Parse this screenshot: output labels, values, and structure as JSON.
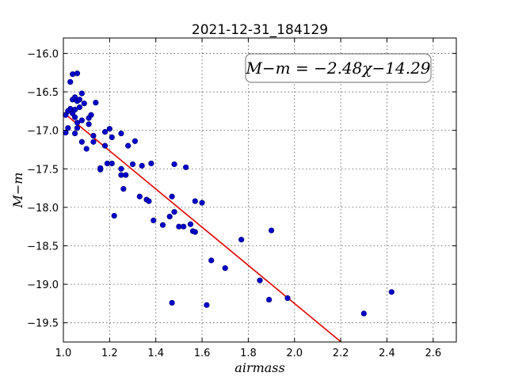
{
  "chart_data": {
    "type": "scatter",
    "title": "2021-12-31_184129",
    "xlabel": "airmass",
    "ylabel": "M−m",
    "xlim": [
      1.0,
      2.7
    ],
    "ylim": [
      -19.75,
      -15.8
    ],
    "x_ticks": [
      1.0,
      1.2,
      1.4,
      1.6,
      1.8,
      2.0,
      2.2,
      2.4,
      2.6
    ],
    "x_tick_labels": [
      "1.0",
      "1.2",
      "1.4",
      "1.6",
      "1.8",
      "2.0",
      "2.2",
      "2.4",
      "2.6"
    ],
    "y_ticks": [
      -16.0,
      -16.5,
      -17.0,
      -17.5,
      -18.0,
      -18.5,
      -19.0,
      -19.5
    ],
    "y_tick_labels": [
      "−16.0",
      "−16.5",
      "−17.0",
      "−17.5",
      "−18.0",
      "−18.5",
      "−19.0",
      "−19.5"
    ],
    "grid": true,
    "annotation": "M−m = −2.48χ−14.29",
    "annotation_position": "top-right",
    "marker_color": "#0000cc",
    "fit_color": "#dd0000",
    "fit": {
      "slope": -2.48,
      "intercept": -14.29,
      "x_range": [
        1.0,
        2.2
      ]
    },
    "points": [
      {
        "x": 1.01,
        "y": -16.8
      },
      {
        "x": 1.01,
        "y": -17.03
      },
      {
        "x": 1.02,
        "y": -16.97
      },
      {
        "x": 1.02,
        "y": -16.75
      },
      {
        "x": 1.03,
        "y": -16.72
      },
      {
        "x": 1.03,
        "y": -16.37
      },
      {
        "x": 1.04,
        "y": -16.27
      },
      {
        "x": 1.04,
        "y": -16.6
      },
      {
        "x": 1.04,
        "y": -16.78
      },
      {
        "x": 1.05,
        "y": -16.57
      },
      {
        "x": 1.05,
        "y": -16.83
      },
      {
        "x": 1.05,
        "y": -17.04
      },
      {
        "x": 1.05,
        "y": -16.73
      },
      {
        "x": 1.06,
        "y": -16.26
      },
      {
        "x": 1.06,
        "y": -16.62
      },
      {
        "x": 1.06,
        "y": -16.9
      },
      {
        "x": 1.06,
        "y": -16.97
      },
      {
        "x": 1.07,
        "y": -16.6
      },
      {
        "x": 1.07,
        "y": -16.7
      },
      {
        "x": 1.08,
        "y": -16.52
      },
      {
        "x": 1.08,
        "y": -16.87
      },
      {
        "x": 1.08,
        "y": -17.15
      },
      {
        "x": 1.09,
        "y": -16.65
      },
      {
        "x": 1.1,
        "y": -17.24
      },
      {
        "x": 1.11,
        "y": -16.84
      },
      {
        "x": 1.11,
        "y": -16.92
      },
      {
        "x": 1.12,
        "y": -16.8
      },
      {
        "x": 1.13,
        "y": -17.15
      },
      {
        "x": 1.13,
        "y": -17.07
      },
      {
        "x": 1.14,
        "y": -16.64
      },
      {
        "x": 1.16,
        "y": -17.51
      },
      {
        "x": 1.16,
        "y": -17.49
      },
      {
        "x": 1.18,
        "y": -17.2
      },
      {
        "x": 1.18,
        "y": -17.02
      },
      {
        "x": 1.19,
        "y": -17.43
      },
      {
        "x": 1.2,
        "y": -16.98
      },
      {
        "x": 1.21,
        "y": -17.09
      },
      {
        "x": 1.21,
        "y": -17.43
      },
      {
        "x": 1.22,
        "y": -18.11
      },
      {
        "x": 1.25,
        "y": -17.04
      },
      {
        "x": 1.25,
        "y": -17.5
      },
      {
        "x": 1.25,
        "y": -17.58
      },
      {
        "x": 1.26,
        "y": -17.76
      },
      {
        "x": 1.27,
        "y": -17.58
      },
      {
        "x": 1.28,
        "y": -17.2
      },
      {
        "x": 1.3,
        "y": -17.44
      },
      {
        "x": 1.31,
        "y": -17.14
      },
      {
        "x": 1.33,
        "y": -17.86
      },
      {
        "x": 1.34,
        "y": -17.46
      },
      {
        "x": 1.36,
        "y": -17.9
      },
      {
        "x": 1.37,
        "y": -17.92
      },
      {
        "x": 1.38,
        "y": -17.43
      },
      {
        "x": 1.39,
        "y": -18.17
      },
      {
        "x": 1.43,
        "y": -18.23
      },
      {
        "x": 1.46,
        "y": -18.12
      },
      {
        "x": 1.47,
        "y": -17.86
      },
      {
        "x": 1.47,
        "y": -19.24
      },
      {
        "x": 1.48,
        "y": -17.44
      },
      {
        "x": 1.48,
        "y": -18.06
      },
      {
        "x": 1.5,
        "y": -18.25
      },
      {
        "x": 1.52,
        "y": -18.25
      },
      {
        "x": 1.53,
        "y": -17.48
      },
      {
        "x": 1.55,
        "y": -18.22
      },
      {
        "x": 1.56,
        "y": -18.31
      },
      {
        "x": 1.57,
        "y": -17.92
      },
      {
        "x": 1.57,
        "y": -18.32
      },
      {
        "x": 1.6,
        "y": -17.94
      },
      {
        "x": 1.62,
        "y": -19.27
      },
      {
        "x": 1.64,
        "y": -18.69
      },
      {
        "x": 1.7,
        "y": -18.79
      },
      {
        "x": 1.77,
        "y": -18.42
      },
      {
        "x": 1.85,
        "y": -18.95
      },
      {
        "x": 1.89,
        "y": -19.2
      },
      {
        "x": 1.9,
        "y": -18.3
      },
      {
        "x": 1.97,
        "y": -19.18
      },
      {
        "x": 2.3,
        "y": -19.38
      },
      {
        "x": 2.42,
        "y": -19.1
      }
    ]
  }
}
